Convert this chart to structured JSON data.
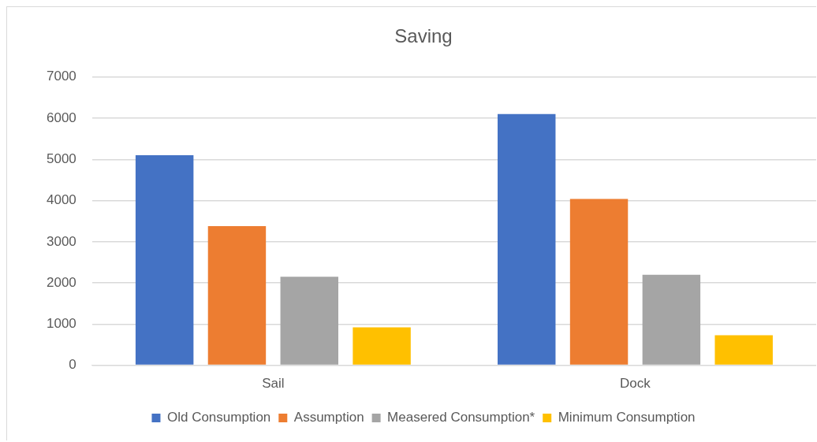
{
  "chart_data": {
    "type": "bar",
    "title": "Saving",
    "categories": [
      "Sail",
      "Dock"
    ],
    "series": [
      {
        "name": "Old Consumption",
        "color": "#4472c4",
        "values": [
          5100,
          6100
        ]
      },
      {
        "name": "Assumption",
        "color": "#ed7d31",
        "values": [
          3380,
          4040
        ]
      },
      {
        "name": "Measered Consumption*",
        "color": "#a5a5a5",
        "values": [
          2150,
          2200
        ]
      },
      {
        "name": "Minimum Consumption",
        "color": "#ffc000",
        "values": [
          920,
          730
        ]
      }
    ],
    "ylim": [
      0,
      7000
    ],
    "yticks": [
      0,
      1000,
      2000,
      3000,
      4000,
      5000,
      6000,
      7000
    ],
    "grid": "y",
    "legend": "bottom"
  }
}
